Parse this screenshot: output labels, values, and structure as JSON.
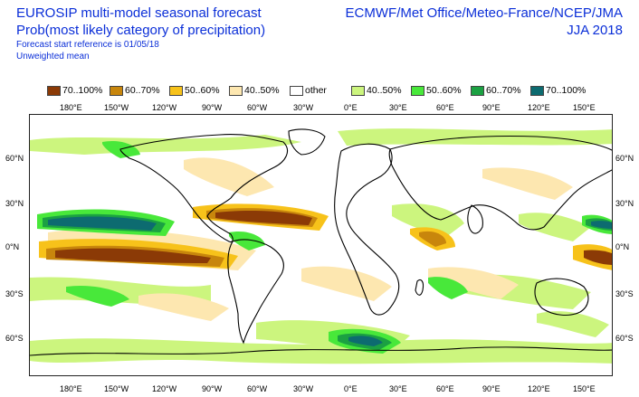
{
  "header": {
    "title": "EUROSIP multi-model seasonal forecast",
    "subtitle": "Prob(most likely category of precipitation)",
    "forecast_ref": "Forecast start reference is 01/05/18",
    "weighting": "Unweighted mean",
    "organisations": "ECMWF/Met Office/Meteo-France/NCEP/JMA",
    "season": "JJA 2018"
  },
  "legend": [
    {
      "label": "70..100%",
      "color": "#8b3a06"
    },
    {
      "label": "60..70%",
      "color": "#c8860c"
    },
    {
      "label": "50..60%",
      "color": "#f7c21a"
    },
    {
      "label": "40..50%",
      "color": "#fde7b0"
    },
    {
      "label": "other",
      "color": "#ffffff"
    },
    {
      "label": "40..50%",
      "color": "#ccf57e"
    },
    {
      "label": "50..60%",
      "color": "#48e83a"
    },
    {
      "label": "60..70%",
      "color": "#1ba142"
    },
    {
      "label": "70..100%",
      "color": "#0d6b70"
    }
  ],
  "longitude_labels": [
    "180°E",
    "150°W",
    "120°W",
    "90°W",
    "60°W",
    "30°W",
    "0°E",
    "30°E",
    "60°E",
    "90°E",
    "120°E",
    "150°E"
  ],
  "latitude_labels": [
    "60°N",
    "30°N",
    "0°N",
    "30°S",
    "60°S"
  ],
  "colors": {
    "dry70": "#8b3a06",
    "dry60": "#c8860c",
    "dry50": "#f7c21a",
    "dry40": "#fde7b0",
    "wet40": "#ccf57e",
    "wet50": "#48e83a",
    "wet60": "#1ba142",
    "wet70": "#0d6b70",
    "coast": "#000000",
    "text": "#0b2fd8"
  }
}
